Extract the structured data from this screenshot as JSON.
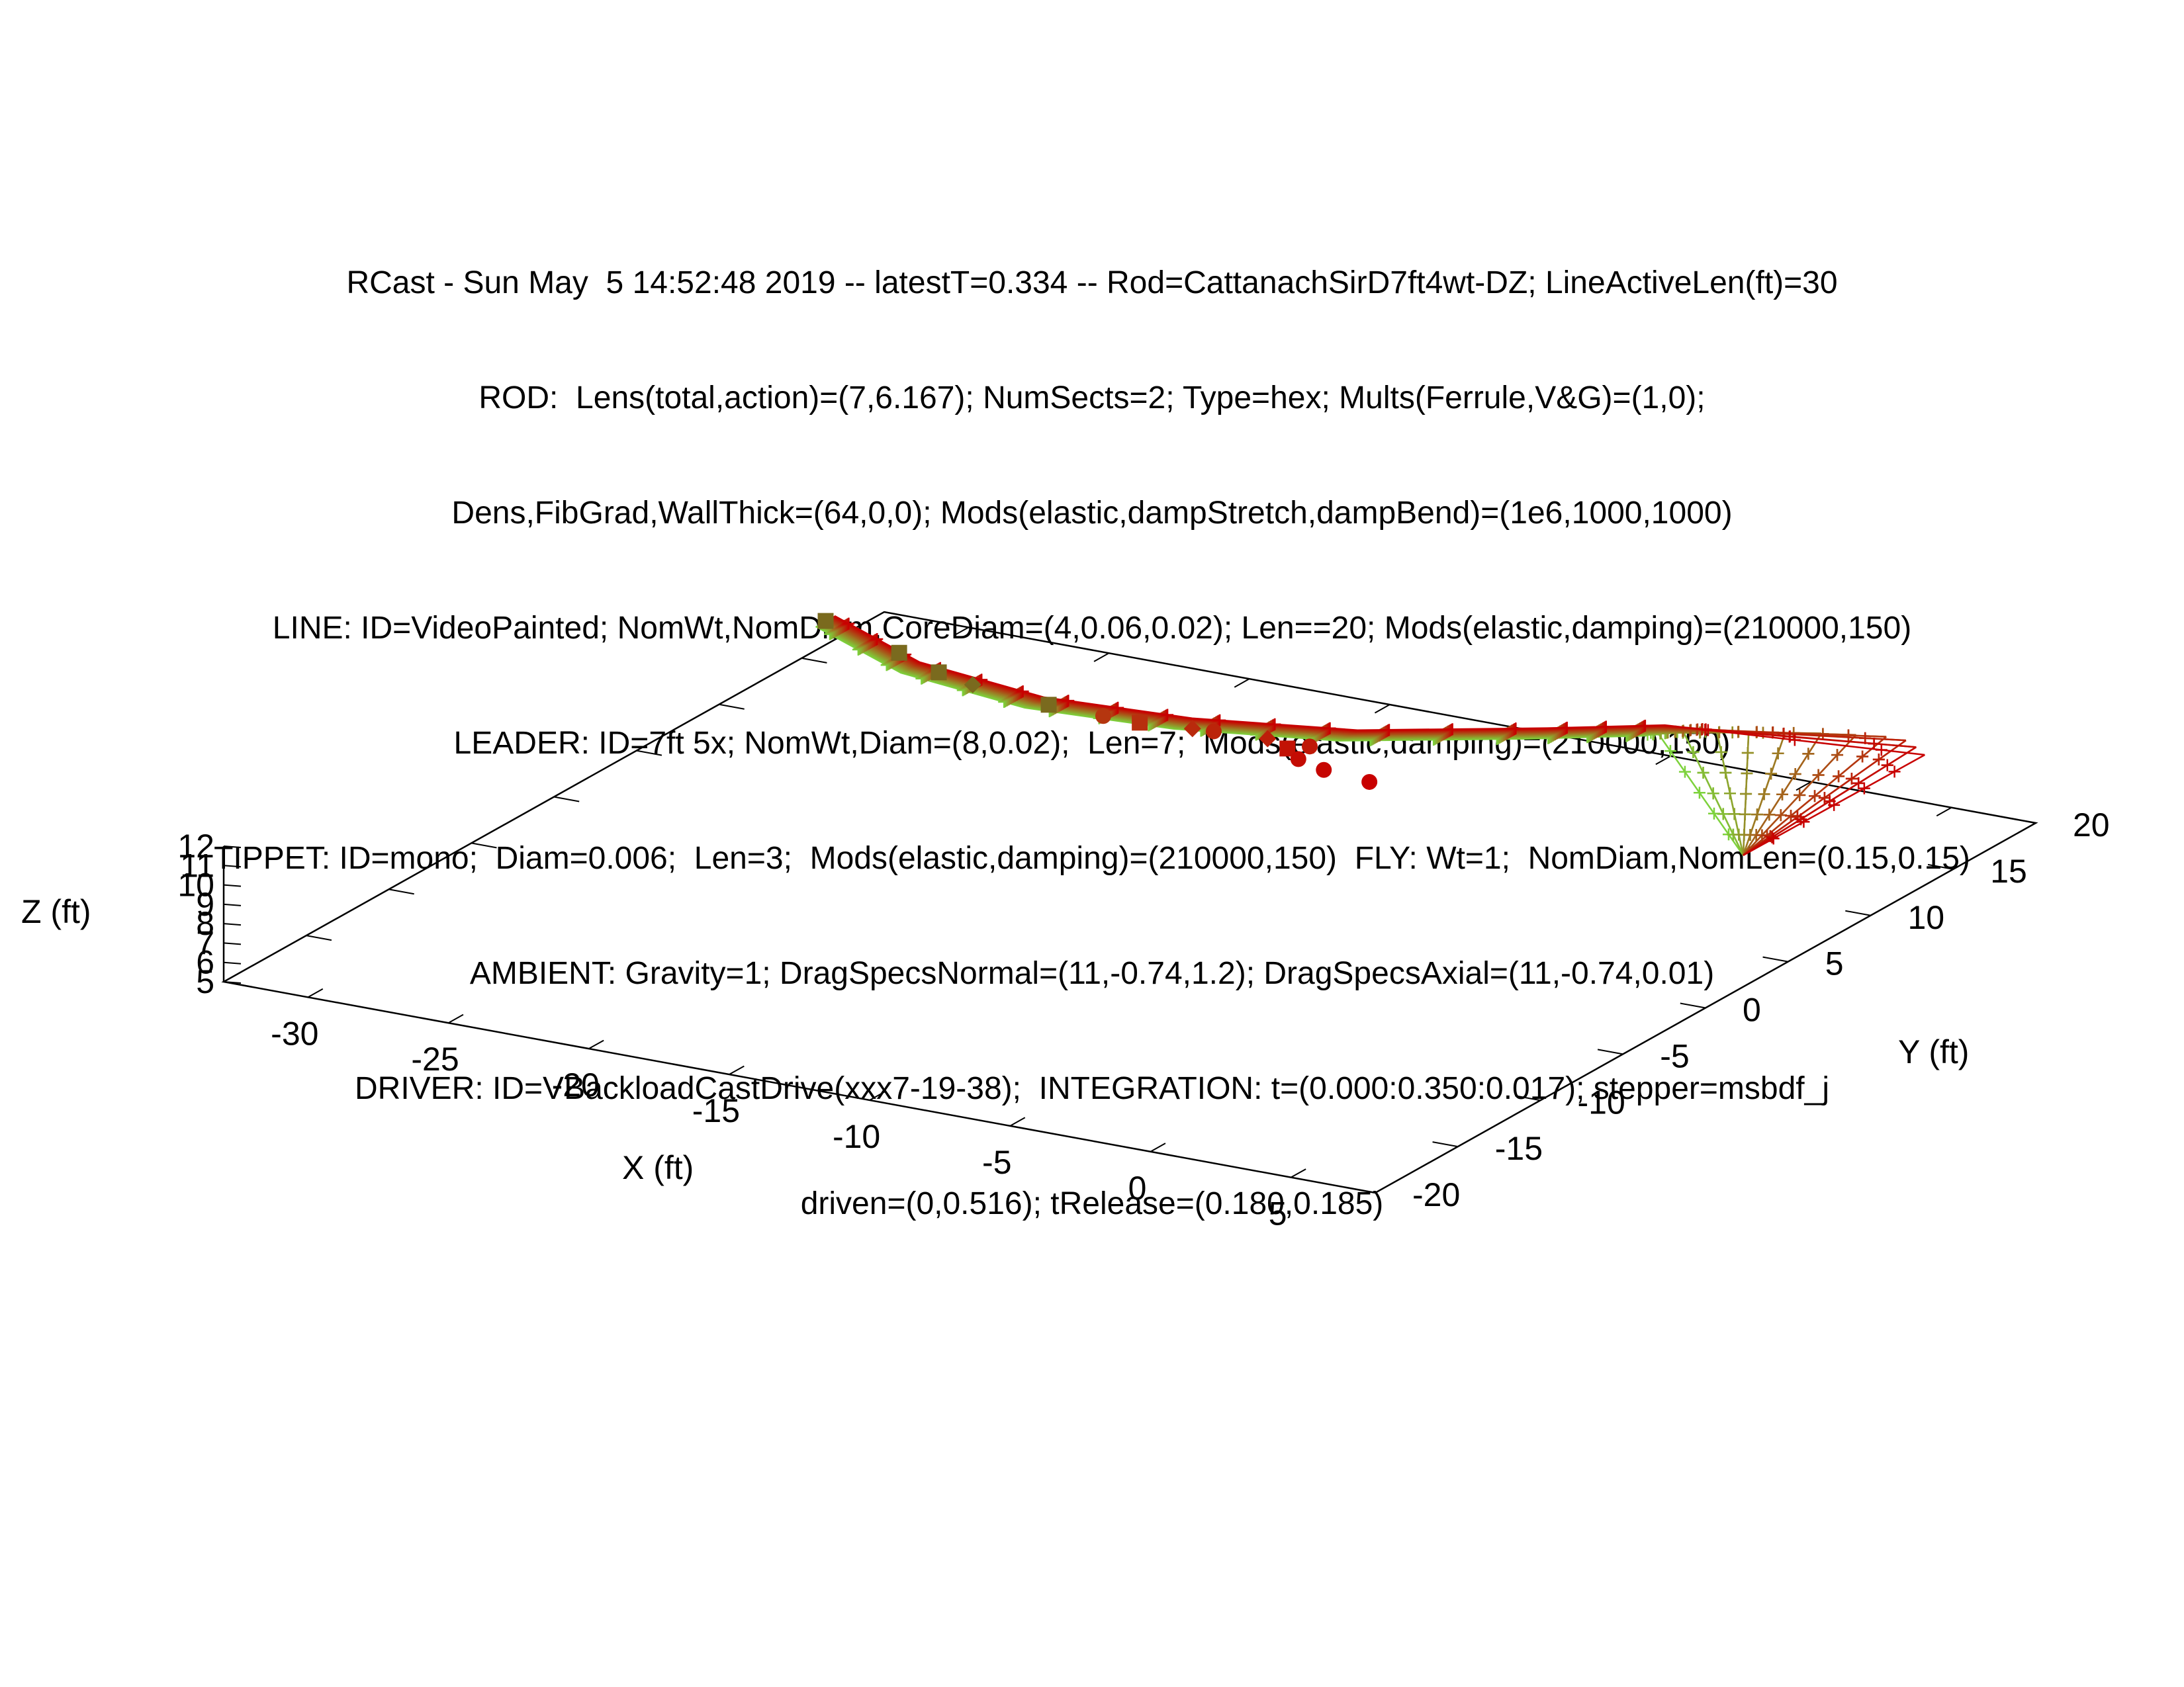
{
  "chart_data": {
    "type": "line",
    "title_lines": [
      "RCast - Sun May  5 14:52:48 2019 -- latestT=0.334 -- Rod=CattanachSirD7ft4wt-DZ; LineActiveLen(ft)=30",
      "ROD:  Lens(total,action)=(7,6.167); NumSects=2; Type=hex; Mults(Ferrule,V&G)=(1,0);",
      "Dens,FibGrad,WallThick=(64,0,0); Mods(elastic,dampStretch,dampBend)=(1e6,1000,1000)",
      "LINE: ID=VideoPainted; NomWt,NomDiam,CoreDiam=(4,0.06,0.02); Len==20; Mods(elastic,damping)=(210000,150)",
      "LEADER: ID=7ft 5x; NomWt,Diam=(8,0.02);  Len=7;  Mods(elastic,damping)=(210000,150)",
      "TIPPET: ID=mono;  Diam=0.006;  Len=3;  Mods(elastic,damping)=(210000,150)  FLY: Wt=1;  NomDiam,NomLen=(0.15,0.15)",
      "AMBIENT: Gravity=1; DragSpecsNormal=(11,-0.74,1.2); DragSpecsAxial=(11,-0.74,0.01)",
      "DRIVER: ID=VBackloadCastDrive(xxx7-19-38);  INTEGRATION: t=(0.000:0.350:0.017); stepper=msbdf_j",
      "driven=(0,0.516); tRelease=(0.180,0.185)"
    ],
    "xlabel": "X (ft)",
    "ylabel": "Y (ft)",
    "zlabel": "Z (ft)",
    "xlim": [
      -33,
      8
    ],
    "ylim": [
      -20,
      20
    ],
    "zlim": [
      5,
      12
    ],
    "x_ticks": [
      "-30",
      "-25",
      "-20",
      "-15",
      "-10",
      "-5",
      "0",
      "5"
    ],
    "y_ticks": [
      "-20",
      "-15",
      "-10",
      "-5",
      "0",
      "5",
      "10",
      "15",
      "20"
    ],
    "z_ticks": [
      "5",
      "6",
      "7",
      "8",
      "9",
      "10",
      "11",
      "12"
    ],
    "time_range": [
      0.0,
      0.334
    ],
    "color_start": "#7dd23c",
    "color_end": "#c80000",
    "marker_color": "#7a6a1e",
    "series_count": 20,
    "path_points": [
      [
        -29.5,
        10.5,
        10.0
      ],
      [
        -25.0,
        8.0,
        10.0
      ],
      [
        -20.0,
        7.0,
        10.0
      ],
      [
        -15.0,
        7.5,
        10.0
      ],
      [
        -10.0,
        9.0,
        10.0
      ],
      [
        -5.0,
        12.0,
        10.0
      ],
      [
        -2.0,
        14.0,
        10.0
      ]
    ],
    "rod_butt": [
      1.7,
      13.0,
      5.0
    ],
    "rod_fan_tip": [
      [
        -2.0,
        14.0,
        10.0
      ],
      [
        -1.2,
        14.3,
        10.0
      ],
      [
        -0.3,
        14.8,
        10.0
      ],
      [
        0.6,
        15.2,
        10.0
      ],
      [
        1.6,
        15.7,
        10.0
      ],
      [
        2.6,
        16.2,
        10.0
      ],
      [
        3.6,
        16.6,
        10.0
      ],
      [
        4.5,
        16.9,
        10.0
      ],
      [
        5.2,
        16.9,
        10.0
      ],
      [
        5.8,
        16.5,
        10.0
      ],
      [
        6.4,
        16.0,
        10.0
      ]
    ],
    "markers": [
      {
        "x": -29.5,
        "y": 10.5,
        "z": 10.0,
        "shape": "square"
      },
      {
        "x": -26.0,
        "y": 9.0,
        "z": 10.0,
        "shape": "square"
      },
      {
        "x": -24.0,
        "y": 8.0,
        "z": 10.0,
        "shape": "square"
      },
      {
        "x": -22.5,
        "y": 7.5,
        "z": 10.0,
        "shape": "diamond"
      },
      {
        "x": -19.5,
        "y": 7.0,
        "z": 10.0,
        "shape": "square"
      },
      {
        "x": -17.5,
        "y": 6.9,
        "z": 10.0,
        "shape": "circle"
      },
      {
        "x": -16.2,
        "y": 6.9,
        "z": 10.0,
        "shape": "square"
      },
      {
        "x": -14.5,
        "y": 7.2,
        "z": 10.0,
        "shape": "diamond"
      },
      {
        "x": -13.8,
        "y": 7.3,
        "z": 10.0,
        "shape": "circle"
      },
      {
        "x": -12.0,
        "y": 7.5,
        "z": 10.0,
        "shape": "diamond"
      },
      {
        "x": -10.5,
        "y": 7.5,
        "z": 10.0,
        "shape": "circle"
      },
      {
        "x": -11.0,
        "y": 7.0,
        "z": 10.0,
        "shape": "square"
      },
      {
        "x": -10.2,
        "y": 6.3,
        "z": 10.0,
        "shape": "circle"
      },
      {
        "x": -9.0,
        "y": 5.8,
        "z": 10.0,
        "shape": "circle"
      },
      {
        "x": -7.2,
        "y": 5.5,
        "z": 10.0,
        "shape": "circle"
      }
    ]
  }
}
